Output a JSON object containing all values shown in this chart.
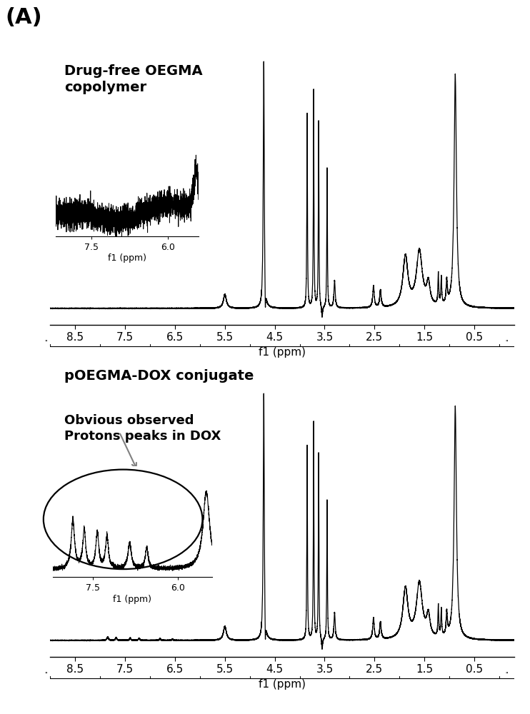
{
  "title_label": "(A)",
  "xlabel": "f1 (ppm)",
  "xlim_left": 9.0,
  "xlim_right": -0.3,
  "xticks": [
    8.5,
    7.5,
    6.5,
    5.5,
    4.5,
    3.5,
    2.5,
    1.5,
    0.5
  ],
  "xtick_labels": [
    "8.5",
    "7.5",
    "6.5",
    "5.5",
    "4.5",
    "3.5",
    "2.5",
    "1.5",
    "0.5"
  ],
  "label_top": "Drug-free OEGMA\ncopolymer",
  "label_bottom": "pOEGMA-DOX conjugate",
  "annotation_bottom": "Obvious observed\nProtons peaks in DOX",
  "inset_xlabel": "f1 (ppm)",
  "background_color": "#ffffff",
  "line_color": "#000000"
}
